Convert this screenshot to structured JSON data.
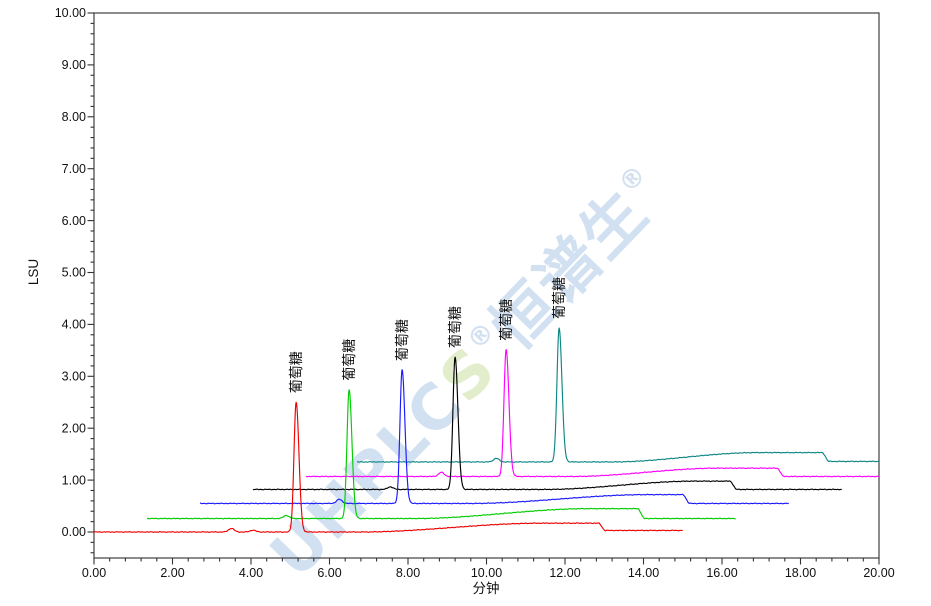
{
  "watermark": {
    "parts": [
      {
        "text": "UHPLC",
        "color": "#d2e1f2",
        "sup": false
      },
      {
        "text": "S",
        "color": "#e2eecb",
        "sup": false
      },
      {
        "text": "®",
        "color": "#d2e1f2",
        "sup": true
      },
      {
        "text": "恒谱生",
        "color": "#d2e1f2",
        "sup": false
      },
      {
        "text": "®",
        "color": "#d2e1f2",
        "sup": true
      }
    ]
  },
  "axis_style": {
    "frame_color": "#4d4d4d",
    "tick_color": "#333333",
    "label_color": "#111111"
  },
  "chart_data": {
    "type": "line",
    "title": "",
    "xlabel": "分钟",
    "ylabel": "LSU",
    "xlim": [
      0,
      20
    ],
    "ylim": [
      -0.5,
      10
    ],
    "x_major_step": 2,
    "x_minor_step": 0.4,
    "y_major_step": 1,
    "y_minor_step": 0.2,
    "grid": "off",
    "legend": "none",
    "x_tick_labels": [
      "0.00",
      "2.00",
      "4.00",
      "6.00",
      "8.00",
      "10.00",
      "12.00",
      "14.00",
      "16.00",
      "18.00",
      "20.00"
    ],
    "y_tick_labels": [
      "0.00",
      "1.00",
      "2.00",
      "3.00",
      "4.00",
      "5.00",
      "6.00",
      "7.00",
      "8.00",
      "9.00",
      "10.00"
    ],
    "peak_compound_label": "葡萄糖",
    "series": [
      {
        "id": "teal",
        "color": "#0d8686",
        "label": "葡萄糖",
        "start": 6.7,
        "end": 20.0,
        "baseline": 1.35,
        "bumps": [
          {
            "t": 10.25,
            "h": 0.07
          }
        ],
        "peak": {
          "t": 11.85,
          "apex": 3.93
        },
        "drift": {
          "rise_start": 13.2,
          "flat_start": 16.9,
          "top": 0.18,
          "drop_at": 18.55,
          "after": 1.36
        }
      },
      {
        "id": "magenta",
        "color": "#ff00ff",
        "label": "葡萄糖",
        "start": 5.4,
        "end": 20.0,
        "baseline": 1.07,
        "bumps": [
          {
            "t": 8.85,
            "h": 0.08
          }
        ],
        "peak": {
          "t": 10.5,
          "apex": 3.51
        },
        "drift": {
          "rise_start": 12.2,
          "flat_start": 15.9,
          "top": 0.16,
          "drop_at": 17.4,
          "after": 1.07
        }
      },
      {
        "id": "black",
        "color": "#000000",
        "label": "葡萄糖",
        "start": 4.05,
        "end": 19.05,
        "baseline": 0.82,
        "bumps": [
          {
            "t": 7.55,
            "h": 0.05
          }
        ],
        "peak": {
          "t": 9.2,
          "apex": 3.37
        },
        "drift": {
          "rise_start": 11.5,
          "flat_start": 15.3,
          "top": 0.16,
          "drop_at": 16.2,
          "after": 0.82
        }
      },
      {
        "id": "blue",
        "color": "#1a1aff",
        "label": "葡萄糖",
        "start": 2.7,
        "end": 17.7,
        "baseline": 0.55,
        "bumps": [
          {
            "t": 6.25,
            "h": 0.08
          }
        ],
        "peak": {
          "t": 7.85,
          "apex": 3.12
        },
        "drift": {
          "rise_start": 9.6,
          "flat_start": 14.1,
          "top": 0.17,
          "drop_at": 15.0,
          "after": 0.55
        }
      },
      {
        "id": "green",
        "color": "#00cc00",
        "label": "葡萄糖",
        "start": 1.35,
        "end": 16.35,
        "baseline": 0.26,
        "bumps": [
          {
            "t": 4.9,
            "h": 0.06
          }
        ],
        "peak": {
          "t": 6.5,
          "apex": 2.74
        },
        "drift": {
          "rise_start": 8.2,
          "flat_start": 12.6,
          "top": 0.19,
          "drop_at": 13.85,
          "after": 0.26
        }
      },
      {
        "id": "red",
        "color": "#ee0000",
        "label": "葡萄糖",
        "start": 0.0,
        "end": 15.0,
        "baseline": 0.0,
        "bumps": [
          {
            "t": 3.5,
            "h": 0.07
          },
          {
            "t": 4.05,
            "h": 0.035
          }
        ],
        "peak": {
          "t": 5.15,
          "apex": 2.5
        },
        "drift": {
          "rise_start": 6.8,
          "flat_start": 11.4,
          "top": 0.17,
          "drop_at": 12.85,
          "after": 0.03
        }
      }
    ]
  }
}
